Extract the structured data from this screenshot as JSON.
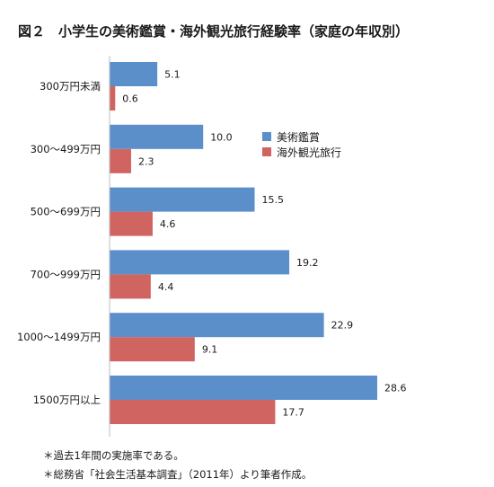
{
  "chart_data": {
    "type": "bar",
    "orientation": "horizontal",
    "title": "図２　小学生の美術鑑賞・海外観光旅行経験率（家庭の年収別）",
    "categories": [
      "300万円未満",
      "300〜499万円",
      "500〜699万円",
      "700〜999万円",
      "1000〜1499万円",
      "1500万円以上"
    ],
    "series": [
      {
        "name": "美術鑑賞",
        "color": "#5b8fc9",
        "values": [
          5.1,
          10.0,
          15.5,
          19.2,
          22.9,
          28.6
        ]
      },
      {
        "name": "海外観光旅行",
        "color": "#cf6461",
        "values": [
          0.6,
          2.3,
          4.6,
          4.4,
          9.1,
          17.7
        ]
      }
    ],
    "value_labels": [
      [
        "5.1",
        "10.0",
        "15.5",
        "19.2",
        "22.9",
        "28.6"
      ],
      [
        "0.6",
        "2.3",
        "4.6",
        "4.4",
        "9.1",
        "17.7"
      ]
    ],
    "xlim": [
      0,
      30
    ],
    "grid": false,
    "legend_position": "right"
  },
  "notes": [
    "＊過去1年間の実施率である。",
    "＊総務省「社会生活基本調査」（2011年）より筆者作成。"
  ]
}
